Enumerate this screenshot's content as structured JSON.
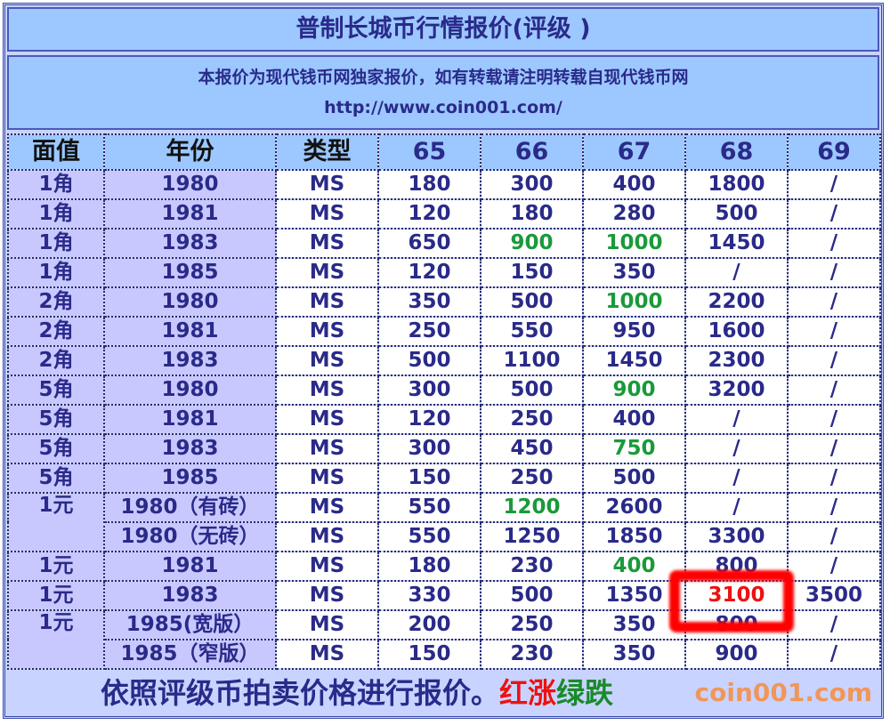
{
  "title": "普制长城币行情报价(评级 )",
  "notice": "本报价为现代钱币网独家报价，如有转载请注明转载自现代钱币网",
  "url": "http://www.coin001.com/",
  "headers": [
    "面值",
    "年份",
    "类型",
    "65",
    "66",
    "67",
    "68",
    "69"
  ],
  "rows": [
    {
      "denom": "1角",
      "year": "1980",
      "type": "MS",
      "p": [
        "180",
        "300",
        "400",
        "1800",
        "/"
      ]
    },
    {
      "denom": "1角",
      "year": "1981",
      "type": "MS",
      "p": [
        "120",
        "180",
        "280",
        "500",
        "/"
      ]
    },
    {
      "denom": "1角",
      "year": "1983",
      "type": "MS",
      "p": [
        "650",
        "900",
        "1000",
        "1450",
        "/"
      ],
      "green": [
        1,
        2
      ]
    },
    {
      "denom": "1角",
      "year": "1985",
      "type": "MS",
      "p": [
        "120",
        "150",
        "350",
        "/",
        "/"
      ]
    },
    {
      "denom": "2角",
      "year": "1980",
      "type": "MS",
      "p": [
        "350",
        "500",
        "1000",
        "2200",
        "/"
      ],
      "green": [
        2
      ]
    },
    {
      "denom": "2角",
      "year": "1981",
      "type": "MS",
      "p": [
        "250",
        "550",
        "950",
        "1600",
        "/"
      ]
    },
    {
      "denom": "2角",
      "year": "1983",
      "type": "MS",
      "p": [
        "500",
        "1100",
        "1450",
        "2300",
        "/"
      ]
    },
    {
      "denom": "5角",
      "year": "1980",
      "type": "MS",
      "p": [
        "300",
        "500",
        "900",
        "3200",
        "/"
      ],
      "green": [
        2
      ]
    },
    {
      "denom": "5角",
      "year": "1981",
      "type": "MS",
      "p": [
        "120",
        "250",
        "400",
        "/",
        "/"
      ]
    },
    {
      "denom": "5角",
      "year": "1983",
      "type": "MS",
      "p": [
        "300",
        "450",
        "750",
        "/",
        "/"
      ],
      "green": [
        2
      ]
    },
    {
      "denom": "5角",
      "year": "1985",
      "type": "MS",
      "p": [
        "150",
        "250",
        "500",
        "/",
        "/"
      ]
    },
    {
      "denom": "1元",
      "span": 2,
      "year": "1980（有砖）",
      "type": "MS",
      "p": [
        "550",
        "1200",
        "2600",
        "/",
        "/"
      ],
      "green": [
        1
      ]
    },
    {
      "year": "1980（无砖）",
      "type": "MS",
      "p": [
        "550",
        "1250",
        "1850",
        "3300",
        "/"
      ]
    },
    {
      "denom": "1元",
      "year": "1981",
      "type": "MS",
      "p": [
        "180",
        "230",
        "400",
        "800",
        "/"
      ],
      "green": [
        2
      ]
    },
    {
      "denom": "1元",
      "year": "1983",
      "type": "MS",
      "p": [
        "330",
        "500",
        "1350",
        "3100",
        "3500"
      ],
      "red": [
        3
      ]
    },
    {
      "denom": "1元",
      "span": 2,
      "year": "1985(宽版）",
      "type": "MS",
      "p": [
        "200",
        "250",
        "350",
        "800",
        "/"
      ]
    },
    {
      "year": "1985（窄版）",
      "type": "MS",
      "p": [
        "150",
        "230",
        "350",
        "900",
        "/"
      ]
    }
  ],
  "footer": {
    "text": "依照评级币拍卖价格进行报价。",
    "up": "红涨",
    "down": "绿跌"
  },
  "watermark": "coin001.com",
  "colors": {
    "up": "#ee1111",
    "down": "#1a9a3a",
    "text": "#2a2a8a",
    "header": "#9cc8ff",
    "left_col": "#c8c8ff"
  }
}
